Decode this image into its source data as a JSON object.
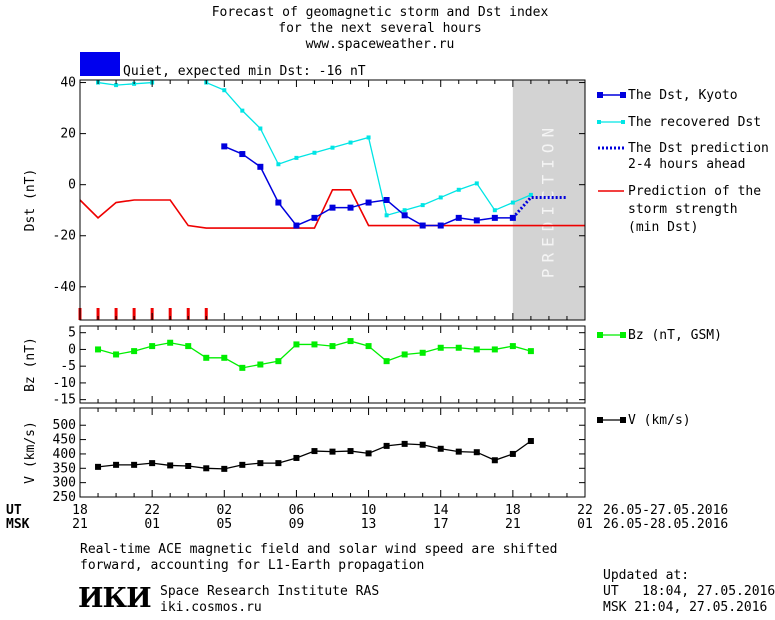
{
  "header": {
    "title_line1": "Forecast of geomagnetic storm and Dst index",
    "title_line2": "for the next several hours",
    "website": "www.spaceweather.ru",
    "status_text": "Quiet, expected min Dst: -16 nT",
    "status_color": "#0000ee"
  },
  "prediction_label": "PREDICTION",
  "time_axis": {
    "ut_label": "UT",
    "msk_label": "MSK",
    "ut_ticks": [
      "18",
      "22",
      "02",
      "06",
      "10",
      "14",
      "18",
      "22"
    ],
    "msk_ticks": [
      "21",
      "01",
      "05",
      "09",
      "13",
      "17",
      "21",
      "01"
    ],
    "ut_range": "26.05-27.05.2016",
    "msk_range": "26.05-28.05.2016"
  },
  "legend": {
    "dst_kyoto": "The Dst, Kyoto",
    "dst_recovered": "The recovered Dst",
    "dst_prediction_1": "The Dst prediction",
    "dst_prediction_2": "2-4 hours ahead",
    "storm_1": "Prediction of the",
    "storm_2": "storm strength",
    "storm_3": "(min Dst)",
    "bz": "Bz (nT, GSM)",
    "v": "V (km/s)"
  },
  "footer": {
    "note_line1": "Real-time ACE magnetic field and solar wind speed are shifted",
    "note_line2": "forward, accounting for L1-Earth propagation",
    "logo_text": "ИКИ",
    "institute": "Space Research Institute RAS",
    "institute_url": "iki.cosmos.ru",
    "updated_label": "Updated at:",
    "updated_ut": "UT   18:04, 27.05.2016",
    "updated_msk": "MSK 21:04, 27.05.2016"
  },
  "colors": {
    "kyoto": "#0000dd",
    "recovered": "#00e5e5",
    "prediction": "#0000dd",
    "storm": "#ee0000",
    "bz": "#00ee00",
    "v": "#000000",
    "prediction_zone": "#d3d3d3"
  },
  "chart_data": [
    {
      "type": "line",
      "ylabel": "Dst (nT)",
      "ylim": [
        -53,
        41
      ],
      "yticks": [
        40,
        20,
        0,
        -20,
        -40
      ],
      "x_unit": "UT hours since 18:00 26.05.2016",
      "xlim": [
        0,
        28
      ],
      "prediction_zone": [
        24,
        28
      ],
      "series": [
        {
          "name": "The Dst, Kyoto",
          "marker": "square",
          "x": [
            8,
            9,
            10,
            11,
            12,
            13,
            14,
            15,
            16,
            17,
            18,
            19,
            20,
            21,
            22,
            23,
            24
          ],
          "y": [
            15,
            12,
            7,
            -7,
            -16,
            -13,
            -9,
            -9,
            -7,
            -6,
            -12,
            -16,
            -16,
            -13,
            -14,
            -13,
            -13
          ]
        },
        {
          "name": "The recovered Dst",
          "marker": "dot",
          "x": [
            1,
            2,
            3,
            4,
            7,
            8,
            9,
            10,
            11,
            12,
            13,
            14,
            15,
            16,
            17,
            18,
            19,
            20,
            21,
            22,
            23,
            24,
            25
          ],
          "y": [
            40,
            39,
            39.5,
            40,
            40,
            37,
            29,
            22,
            8,
            10.5,
            12.5,
            14.5,
            16.5,
            18.5,
            -12,
            -10,
            -8,
            -5,
            -2,
            0.5,
            -10,
            -7,
            -4
          ]
        },
        {
          "name": "The Dst prediction 2-4 hours ahead",
          "style": "dotted",
          "x": [
            24,
            25,
            26,
            27
          ],
          "y": [
            -13,
            -5,
            -5,
            -5
          ]
        },
        {
          "name": "Prediction of the storm strength (min Dst)",
          "style": "step",
          "x": [
            0,
            1,
            2,
            3,
            4,
            5,
            6,
            7,
            8,
            9,
            10,
            11,
            12,
            13,
            14,
            15,
            16,
            17,
            18,
            19,
            20,
            21,
            22,
            23,
            24,
            25,
            26,
            27,
            28
          ],
          "y": [
            -6,
            -13,
            -7,
            -6,
            -6,
            -6,
            -16,
            -17,
            -17,
            -17,
            -17,
            -17,
            -17,
            -17,
            -2,
            -2,
            -16,
            -16,
            -16,
            -16,
            -16,
            -16,
            -16,
            -16,
            -16,
            -16,
            -16,
            -16,
            -16
          ]
        }
      ],
      "storm_ticks_x": [
        0,
        1,
        2,
        3,
        4,
        5,
        6,
        7
      ]
    },
    {
      "type": "line",
      "ylabel": "Bz (nT)",
      "ylim": [
        -16,
        7
      ],
      "yticks": [
        5,
        0,
        -5,
        -10,
        -15
      ],
      "series": [
        {
          "name": "Bz (nT, GSM)",
          "marker": "square",
          "x": [
            1,
            2,
            3,
            4,
            5,
            6,
            7,
            8,
            9,
            10,
            11,
            12,
            13,
            14,
            15,
            16,
            17,
            18,
            19,
            20,
            21,
            22,
            23,
            24,
            25
          ],
          "y": [
            0,
            -1.5,
            -0.5,
            1,
            2,
            1,
            -2.5,
            -2.5,
            -5.5,
            -4.5,
            -3.5,
            1.5,
            1.5,
            1,
            2.5,
            1,
            -3.5,
            -1.5,
            -1,
            0.5,
            0.5,
            0,
            0,
            1,
            -0.5
          ]
        }
      ]
    },
    {
      "type": "line",
      "ylabel": "V (km/s)",
      "ylim": [
        250,
        560
      ],
      "yticks": [
        500,
        450,
        400,
        350,
        300,
        250
      ],
      "series": [
        {
          "name": "V (km/s)",
          "marker": "square",
          "x": [
            1,
            2,
            3,
            4,
            5,
            6,
            7,
            8,
            9,
            10,
            11,
            12,
            13,
            14,
            15,
            16,
            17,
            18,
            19,
            20,
            21,
            22,
            23,
            24,
            25
          ],
          "y": [
            355,
            362,
            362,
            368,
            360,
            358,
            350,
            348,
            362,
            368,
            368,
            386,
            410,
            408,
            410,
            402,
            428,
            435,
            432,
            418,
            408,
            406,
            378,
            400,
            445
          ]
        }
      ]
    }
  ]
}
